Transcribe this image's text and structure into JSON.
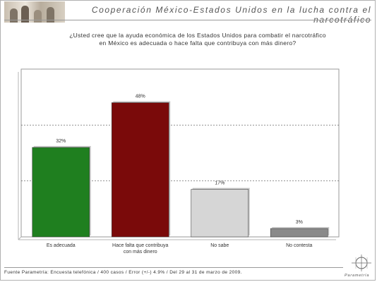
{
  "header": {
    "title": "Cooperación México-Estados Unidos en la lucha contra el narcotráfico"
  },
  "question": {
    "line1": "¿Usted cree que la ayuda económica de los Estados Unidos para combatir el narcotráfico",
    "line2": "en México es adecuada o hace falta que contribuya con más dinero?"
  },
  "chart_data": {
    "type": "bar",
    "categories": [
      [
        "Es adecuada"
      ],
      [
        "Hace falta que contribuya",
        "con más dinero"
      ],
      [
        "No sabe"
      ],
      [
        "No contesta"
      ]
    ],
    "values": [
      32,
      48,
      17,
      3
    ],
    "value_labels": [
      "32%",
      "48%",
      "17%",
      "3%"
    ],
    "colors": [
      "#1f7f1f",
      "#7a0a0a",
      "#d6d6d6",
      "#8a8a8a"
    ],
    "ylim": [
      0,
      60
    ],
    "grid": "dashed horizontal",
    "legend": "none"
  },
  "footer": {
    "source": "Fuente Parametría: Encuesta telefónica / 400 casos / Error (+/-) 4.9% / Del 29 al 31 de marzo de 2009."
  },
  "logo": {
    "text": "Parametría"
  }
}
